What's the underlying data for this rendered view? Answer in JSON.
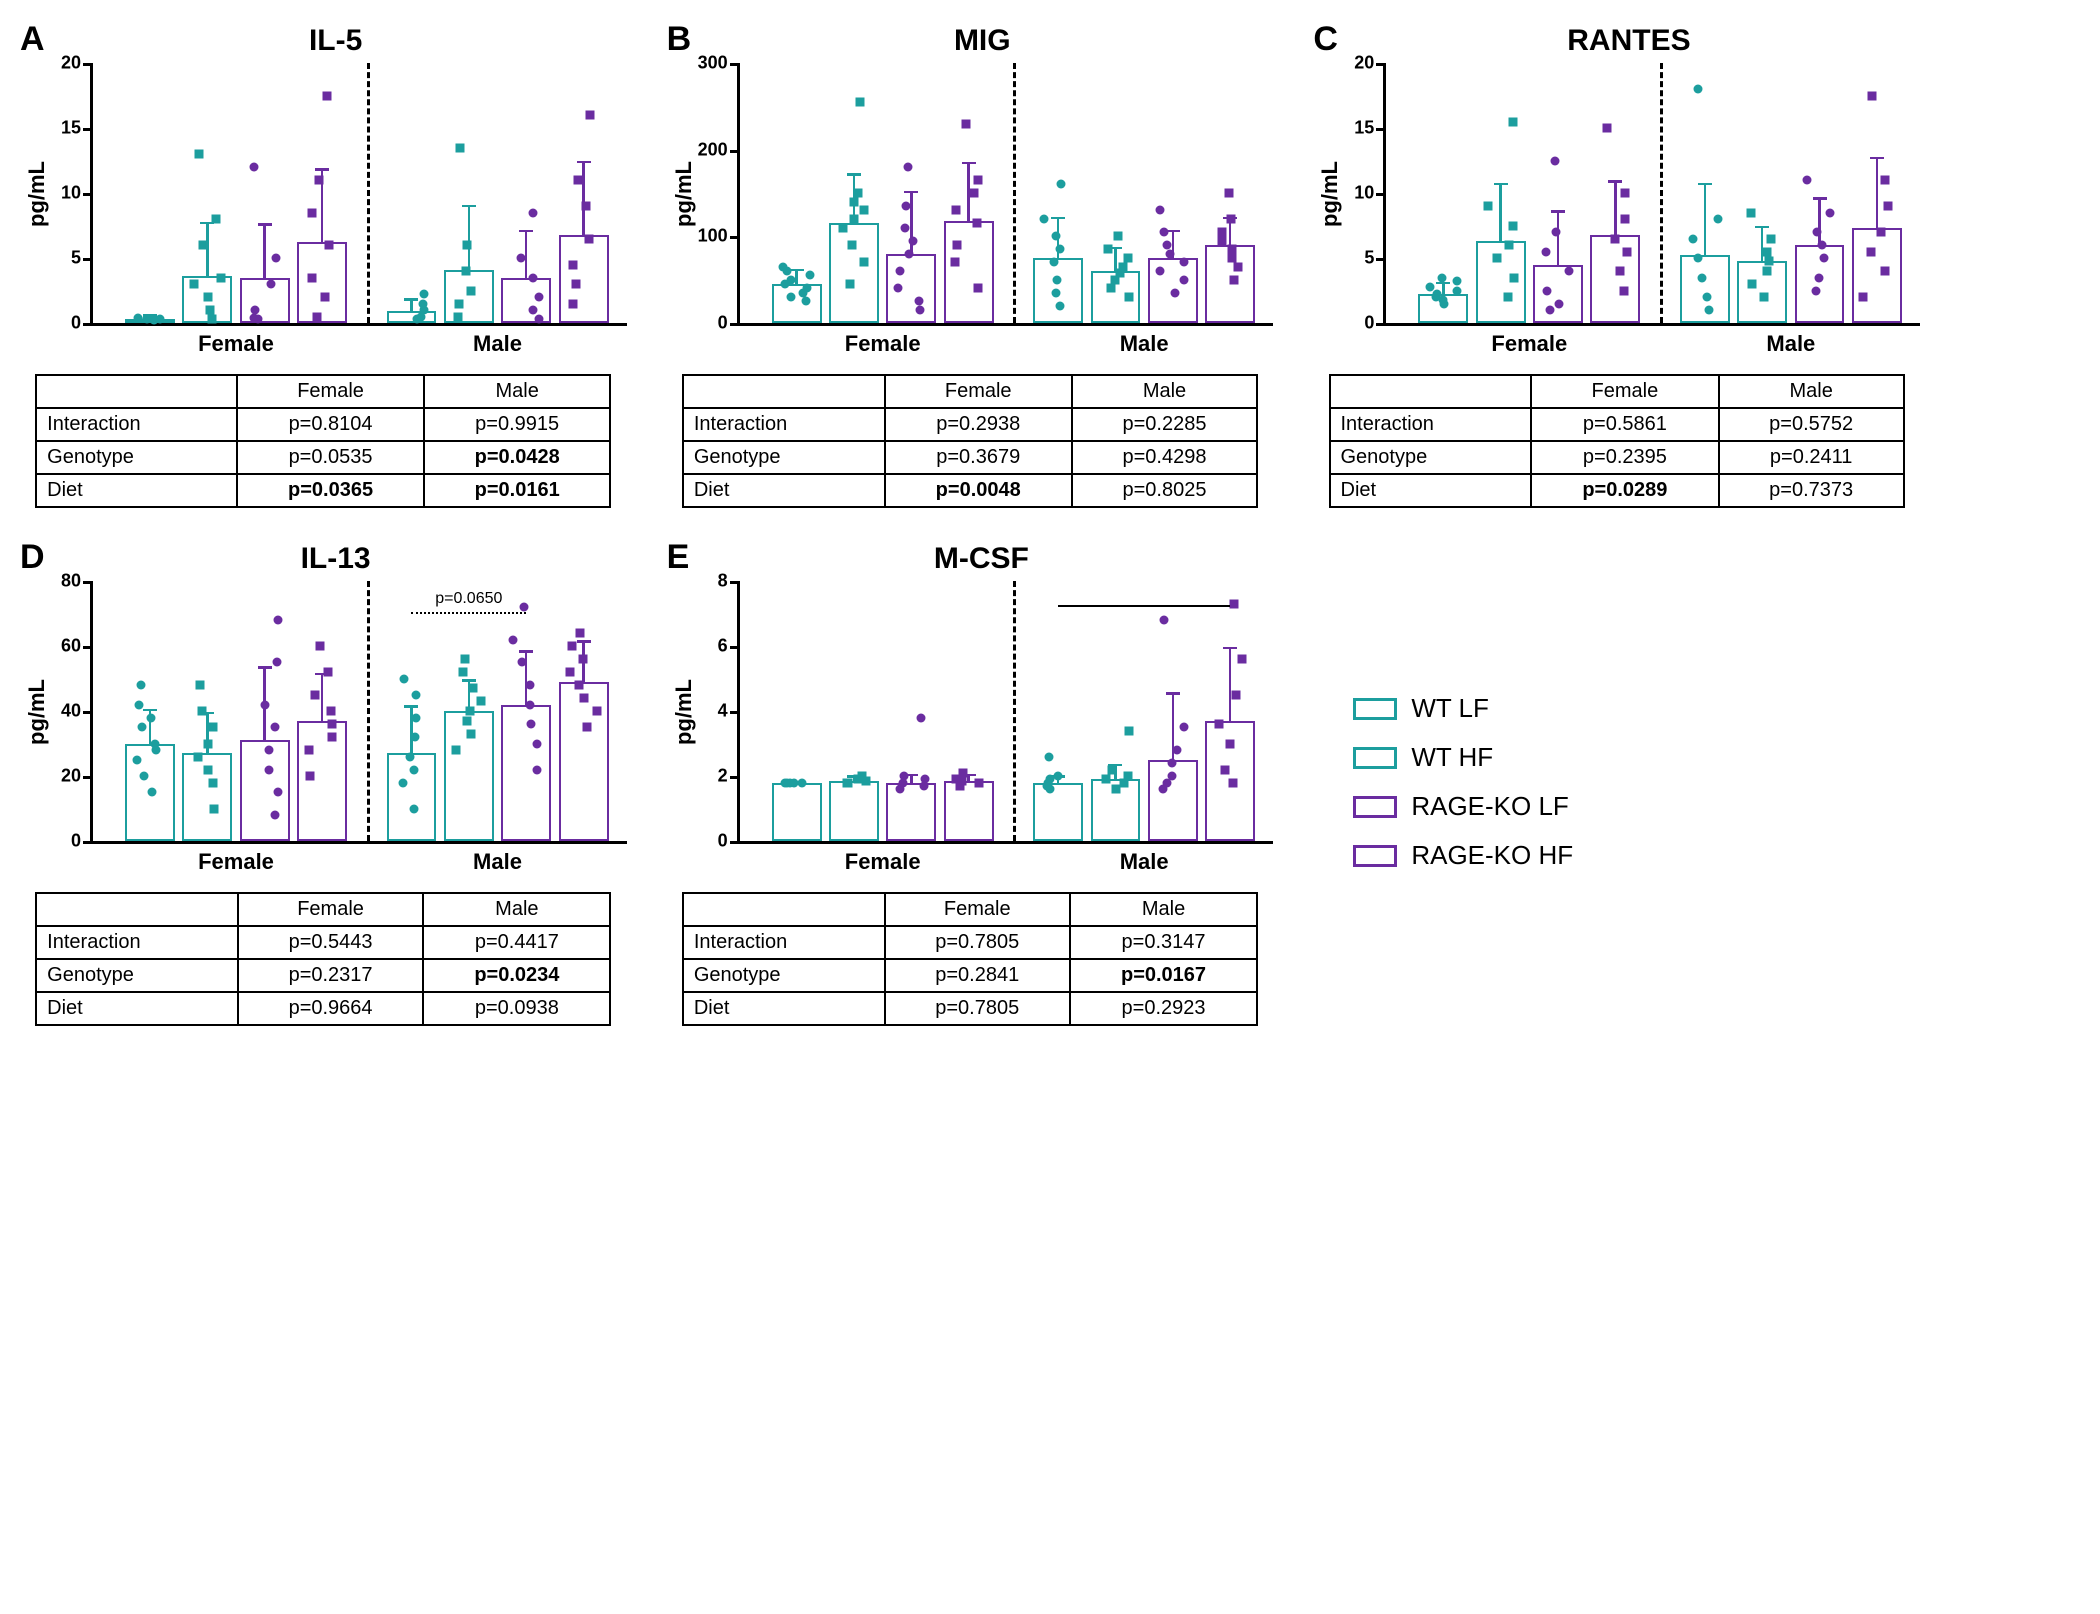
{
  "colors": {
    "teal": "#1c9e9e",
    "purple": "#6a2ca0",
    "black": "#000000",
    "white": "#ffffff"
  },
  "ylabel": "pg/mL",
  "xcats": [
    "Female",
    "Male"
  ],
  "legend": [
    {
      "label": "WT LF",
      "color": "teal",
      "hatch": false
    },
    {
      "label": "WT HF",
      "color": "teal",
      "hatch": true
    },
    {
      "label": "RAGE-KO LF",
      "color": "purple",
      "hatch": false
    },
    {
      "label": "RAGE-KO HF",
      "color": "purple",
      "hatch": true
    }
  ],
  "groups": [
    {
      "color": "teal",
      "hatch": false,
      "marker": "circle"
    },
    {
      "color": "teal",
      "hatch": true,
      "marker": "square"
    },
    {
      "color": "purple",
      "hatch": false,
      "marker": "circle"
    },
    {
      "color": "purple",
      "hatch": true,
      "marker": "square"
    }
  ],
  "panels": [
    {
      "letter": "A",
      "title": "IL-5",
      "ymax": 20,
      "ytick_step": 5,
      "bars": [
        {
          "mean": 0.3,
          "err": 0.2,
          "pts": [
            0.2,
            0.3,
            0.3,
            0.4
          ]
        },
        {
          "mean": 3.6,
          "err": 4.0,
          "pts": [
            0.3,
            1.0,
            2.0,
            3.0,
            3.5,
            6.0,
            8.0,
            13.0
          ]
        },
        {
          "mean": 3.5,
          "err": 4.0,
          "pts": [
            0.3,
            0.4,
            1.0,
            3.0,
            5.0,
            12.0
          ]
        },
        {
          "mean": 6.2,
          "err": 5.5,
          "pts": [
            0.5,
            2.0,
            3.5,
            6.0,
            8.5,
            11.0,
            17.5
          ]
        },
        {
          "mean": 0.9,
          "err": 0.8,
          "pts": [
            0.3,
            0.5,
            1.0,
            1.5,
            2.2
          ]
        },
        {
          "mean": 4.1,
          "err": 4.8,
          "pts": [
            0.5,
            1.5,
            2.5,
            4.0,
            6.0,
            13.5
          ]
        },
        {
          "mean": 3.5,
          "err": 3.5,
          "pts": [
            0.3,
            1.0,
            2.0,
            3.5,
            5.0,
            8.5
          ]
        },
        {
          "mean": 6.8,
          "err": 5.5,
          "pts": [
            1.5,
            3.0,
            4.5,
            6.5,
            9.0,
            11.0,
            16.0
          ]
        }
      ],
      "stats": {
        "cols": [
          "Female",
          "Male"
        ],
        "rows": [
          {
            "label": "Interaction",
            "vals": [
              {
                "t": "p=0.8104"
              },
              {
                "t": "p=0.9915"
              }
            ]
          },
          {
            "label": "Genotype",
            "vals": [
              {
                "t": "p=0.0535"
              },
              {
                "t": "p=0.0428",
                "b": true
              }
            ]
          },
          {
            "label": "Diet",
            "vals": [
              {
                "t": "p=0.0365",
                "b": true
              },
              {
                "t": "p=0.0161",
                "b": true
              }
            ]
          }
        ]
      }
    },
    {
      "letter": "B",
      "title": "MIG",
      "ymax": 300,
      "ytick_step": 100,
      "bars": [
        {
          "mean": 45,
          "err": 15,
          "pts": [
            25,
            30,
            35,
            40,
            45,
            50,
            55,
            60,
            65
          ]
        },
        {
          "mean": 115,
          "err": 55,
          "pts": [
            45,
            70,
            90,
            110,
            120,
            130,
            140,
            150,
            255
          ]
        },
        {
          "mean": 80,
          "err": 70,
          "pts": [
            15,
            25,
            40,
            60,
            80,
            95,
            110,
            135,
            180
          ]
        },
        {
          "mean": 118,
          "err": 65,
          "pts": [
            40,
            70,
            90,
            115,
            130,
            150,
            165,
            230
          ]
        },
        {
          "mean": 75,
          "err": 45,
          "pts": [
            20,
            35,
            50,
            70,
            85,
            100,
            120,
            160
          ]
        },
        {
          "mean": 60,
          "err": 25,
          "pts": [
            30,
            40,
            50,
            58,
            65,
            75,
            85,
            100
          ]
        },
        {
          "mean": 75,
          "err": 30,
          "pts": [
            35,
            50,
            60,
            70,
            80,
            90,
            105,
            130
          ]
        },
        {
          "mean": 90,
          "err": 30,
          "pts": [
            50,
            65,
            75,
            85,
            95,
            105,
            120,
            150
          ]
        }
      ],
      "stats": {
        "cols": [
          "Female",
          "Male"
        ],
        "rows": [
          {
            "label": "Interaction",
            "vals": [
              {
                "t": "p=0.2938"
              },
              {
                "t": "p=0.2285"
              }
            ]
          },
          {
            "label": "Genotype",
            "vals": [
              {
                "t": "p=0.3679"
              },
              {
                "t": "p=0.4298"
              }
            ]
          },
          {
            "label": "Diet",
            "vals": [
              {
                "t": "p=0.0048",
                "b": true
              },
              {
                "t": "p=0.8025"
              }
            ]
          }
        ]
      }
    },
    {
      "letter": "C",
      "title": "RANTES",
      "ymax": 20,
      "ytick_step": 5,
      "bars": [
        {
          "mean": 2.2,
          "err": 0.8,
          "pts": [
            1.5,
            1.8,
            2.0,
            2.2,
            2.5,
            2.8,
            3.2,
            3.5
          ]
        },
        {
          "mean": 6.3,
          "err": 4.3,
          "pts": [
            2.0,
            3.5,
            5.0,
            6.0,
            7.5,
            9.0,
            15.5
          ]
        },
        {
          "mean": 4.5,
          "err": 4.0,
          "pts": [
            1.0,
            1.5,
            2.5,
            4.0,
            5.5,
            7.0,
            12.5
          ]
        },
        {
          "mean": 6.8,
          "err": 4.0,
          "pts": [
            2.5,
            4.0,
            5.5,
            6.5,
            8.0,
            10.0,
            15.0
          ]
        },
        {
          "mean": 5.2,
          "err": 5.4,
          "pts": [
            1.0,
            2.0,
            3.5,
            5.0,
            6.5,
            8.0,
            18.0
          ]
        },
        {
          "mean": 4.8,
          "err": 2.5,
          "pts": [
            2.0,
            3.0,
            4.0,
            4.8,
            5.5,
            6.5,
            8.5
          ]
        },
        {
          "mean": 6.0,
          "err": 3.5,
          "pts": [
            2.5,
            3.5,
            5.0,
            6.0,
            7.0,
            8.5,
            11.0
          ]
        },
        {
          "mean": 7.3,
          "err": 5.3,
          "pts": [
            2.0,
            4.0,
            5.5,
            7.0,
            9.0,
            11.0,
            17.5
          ]
        }
      ],
      "stats": {
        "cols": [
          "Female",
          "Male"
        ],
        "rows": [
          {
            "label": "Interaction",
            "vals": [
              {
                "t": "p=0.5861"
              },
              {
                "t": "p=0.5752"
              }
            ]
          },
          {
            "label": "Genotype",
            "vals": [
              {
                "t": "p=0.2395"
              },
              {
                "t": "p=0.2411"
              }
            ]
          },
          {
            "label": "Diet",
            "vals": [
              {
                "t": "p=0.0289",
                "b": true
              },
              {
                "t": "p=0.7373"
              }
            ]
          }
        ]
      }
    },
    {
      "letter": "D",
      "title": "IL-13",
      "ymax": 80,
      "ytick_step": 20,
      "bars": [
        {
          "mean": 30,
          "err": 10,
          "pts": [
            15,
            20,
            25,
            28,
            30,
            35,
            38,
            42,
            48
          ]
        },
        {
          "mean": 27,
          "err": 12,
          "pts": [
            10,
            18,
            22,
            26,
            30,
            35,
            40,
            48
          ]
        },
        {
          "mean": 31,
          "err": 22,
          "pts": [
            8,
            15,
            22,
            28,
            35,
            42,
            55,
            68
          ]
        },
        {
          "mean": 37,
          "err": 14,
          "pts": [
            20,
            28,
            32,
            36,
            40,
            45,
            52,
            60
          ]
        },
        {
          "mean": 27,
          "err": 14,
          "pts": [
            10,
            18,
            22,
            26,
            32,
            38,
            45,
            50
          ]
        },
        {
          "mean": 40,
          "err": 9,
          "pts": [
            28,
            33,
            37,
            40,
            43,
            47,
            52,
            56
          ]
        },
        {
          "mean": 42,
          "err": 16,
          "pts": [
            22,
            30,
            36,
            42,
            48,
            55,
            62,
            72
          ]
        },
        {
          "mean": 49,
          "err": 12,
          "pts": [
            35,
            40,
            44,
            48,
            52,
            56,
            60,
            64
          ]
        }
      ],
      "annot": {
        "text": "p=0.0650",
        "style": "dotted",
        "from_group": 4,
        "to_group": 6,
        "y": 70
      },
      "stats": {
        "cols": [
          "Female",
          "Male"
        ],
        "rows": [
          {
            "label": "Interaction",
            "vals": [
              {
                "t": "p=0.5443"
              },
              {
                "t": "p=0.4417"
              }
            ]
          },
          {
            "label": "Genotype",
            "vals": [
              {
                "t": "p=0.2317"
              },
              {
                "t": "p=0.0234",
                "b": true
              }
            ]
          },
          {
            "label": "Diet",
            "vals": [
              {
                "t": "p=0.9664"
              },
              {
                "t": "p=0.0938"
              }
            ]
          }
        ]
      }
    },
    {
      "letter": "E",
      "title": "M-CSF",
      "ymax": 8,
      "ytick_step": 2,
      "bars": [
        {
          "mean": 1.8,
          "err": 0,
          "pts": [
            1.8,
            1.8,
            1.8,
            1.8,
            1.8
          ]
        },
        {
          "mean": 1.85,
          "err": 0.1,
          "pts": [
            1.8,
            1.8,
            1.85,
            1.9,
            2.0
          ]
        },
        {
          "mean": 1.8,
          "err": 0.2,
          "pts": [
            1.6,
            1.7,
            1.8,
            1.9,
            2.0,
            3.8
          ]
        },
        {
          "mean": 1.85,
          "err": 0.15,
          "pts": [
            1.7,
            1.8,
            1.85,
            1.9,
            2.1
          ]
        },
        {
          "mean": 1.8,
          "err": 0.15,
          "pts": [
            1.6,
            1.7,
            1.8,
            1.9,
            2.0,
            2.6
          ]
        },
        {
          "mean": 1.9,
          "err": 0.4,
          "pts": [
            1.6,
            1.8,
            1.9,
            2.0,
            2.2,
            3.4
          ]
        },
        {
          "mean": 2.5,
          "err": 2.0,
          "pts": [
            1.6,
            1.8,
            2.0,
            2.4,
            2.8,
            3.5,
            6.8
          ]
        },
        {
          "mean": 3.7,
          "err": 2.2,
          "pts": [
            1.8,
            2.2,
            3.0,
            3.6,
            4.5,
            5.6,
            7.3
          ]
        }
      ],
      "annot": {
        "text": "",
        "style": "solid",
        "from_group": 4,
        "to_group": 7,
        "y": 7.2
      },
      "stats": {
        "cols": [
          "Female",
          "Male"
        ],
        "rows": [
          {
            "label": "Interaction",
            "vals": [
              {
                "t": "p=0.7805"
              },
              {
                "t": "p=0.3147"
              }
            ]
          },
          {
            "label": "Genotype",
            "vals": [
              {
                "t": "p=0.2841"
              },
              {
                "t": "p=0.0167",
                "b": true
              }
            ]
          },
          {
            "label": "Diet",
            "vals": [
              {
                "t": "p=0.7805"
              },
              {
                "t": "p=0.2923"
              }
            ]
          }
        ]
      }
    }
  ]
}
